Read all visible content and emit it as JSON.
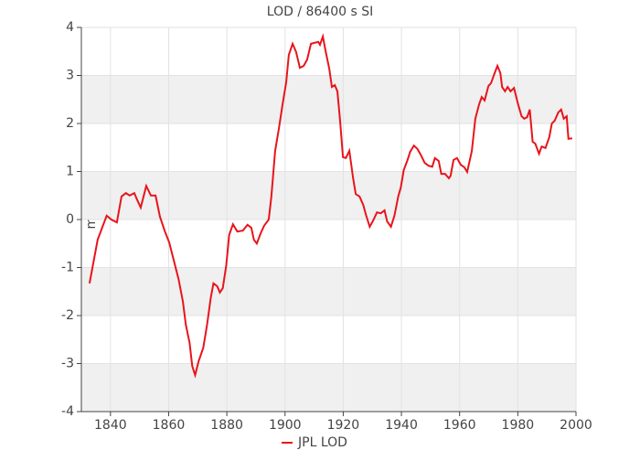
{
  "chart_data": {
    "type": "line",
    "title": "LOD / 86400 s SI",
    "y_label": "ms",
    "x": [
      1832.8,
      1835.6,
      1838.7,
      1840.3,
      1842.2,
      1843.8,
      1845.3,
      1846.6,
      1848.2,
      1849.1,
      1850.4,
      1852.3,
      1853.9,
      1855.5,
      1857.0,
      1858.6,
      1860.2,
      1861.8,
      1863.4,
      1864.9,
      1865.9,
      1867.2,
      1868.1,
      1869.1,
      1870.3,
      1871.9,
      1873.2,
      1874.5,
      1875.4,
      1876.7,
      1877.6,
      1878.6,
      1879.8,
      1880.8,
      1882.1,
      1883.6,
      1885.5,
      1887.1,
      1888.4,
      1889.3,
      1890.3,
      1891.6,
      1892.8,
      1894.4,
      1895.3,
      1896.6,
      1897.9,
      1899.1,
      1900.4,
      1901.3,
      1902.6,
      1903.8,
      1905.1,
      1906.4,
      1907.6,
      1908.9,
      1910.2,
      1911.4,
      1912.0,
      1913.0,
      1913.9,
      1915.2,
      1916.1,
      1917.1,
      1918.0,
      1919.0,
      1919.9,
      1920.9,
      1922.1,
      1923.4,
      1924.3,
      1925.6,
      1926.9,
      1927.8,
      1929.1,
      1930.3,
      1931.6,
      1932.9,
      1934.2,
      1935.1,
      1936.4,
      1937.6,
      1938.9,
      1939.8,
      1940.8,
      1942.1,
      1943.0,
      1944.3,
      1945.5,
      1946.8,
      1948.0,
      1949.3,
      1950.6,
      1951.5,
      1952.8,
      1953.7,
      1955.0,
      1956.3,
      1956.9,
      1957.9,
      1959.1,
      1960.4,
      1961.6,
      1962.6,
      1964.2,
      1965.4,
      1966.7,
      1967.6,
      1968.6,
      1969.9,
      1970.8,
      1971.8,
      1973.0,
      1974.0,
      1974.6,
      1975.6,
      1976.5,
      1977.5,
      1978.7,
      1980.0,
      1981.3,
      1982.2,
      1983.2,
      1984.1,
      1985.1,
      1986.0,
      1987.3,
      1988.2,
      1989.5,
      1990.8,
      1991.7,
      1992.7,
      1993.9,
      1994.9,
      1995.8,
      1996.8,
      1997.4,
      1998.7
    ],
    "series": [
      {
        "name": "JPL LOD",
        "color": "#e8141b",
        "values": [
          -1.33,
          -0.42,
          0.08,
          0,
          -0.06,
          0.48,
          0.55,
          0.5,
          0.55,
          0.42,
          0.25,
          0.7,
          0.5,
          0.5,
          0.06,
          -0.23,
          -0.48,
          -0.86,
          -1.24,
          -1.71,
          -2.19,
          -2.57,
          -3.05,
          -3.24,
          -2.95,
          -2.67,
          -2.19,
          -1.62,
          -1.33,
          -1.39,
          -1.52,
          -1.43,
          -0.95,
          -0.32,
          -0.1,
          -0.25,
          -0.23,
          -0.11,
          -0.17,
          -0.42,
          -0.5,
          -0.29,
          -0.13,
          0,
          0.48,
          1.43,
          1.9,
          2.38,
          2.86,
          3.43,
          3.66,
          3.49,
          3.16,
          3.2,
          3.33,
          3.66,
          3.68,
          3.7,
          3.64,
          3.81,
          3.52,
          3.14,
          2.76,
          2.8,
          2.67,
          2.0,
          1.3,
          1.28,
          1.43,
          0.86,
          0.53,
          0.48,
          0.3,
          0.1,
          -0.15,
          -0.02,
          0.15,
          0.13,
          0.19,
          -0.04,
          -0.15,
          0.08,
          0.48,
          0.67,
          1.03,
          1.24,
          1.41,
          1.54,
          1.47,
          1.33,
          1.18,
          1.12,
          1.1,
          1.28,
          1.22,
          0.95,
          0.95,
          0.86,
          0.91,
          1.24,
          1.28,
          1.14,
          1.09,
          0.99,
          1.43,
          2.1,
          2.4,
          2.55,
          2.48,
          2.78,
          2.84,
          3.01,
          3.2,
          3.05,
          2.76,
          2.67,
          2.76,
          2.67,
          2.74,
          2.42,
          2.15,
          2.1,
          2.13,
          2.29,
          1.62,
          1.58,
          1.37,
          1.52,
          1.49,
          1.71,
          2.0,
          2.06,
          2.23,
          2.29,
          2.1,
          2.15,
          1.68,
          1.69
        ]
      }
    ],
    "xlim": [
      1830,
      2000
    ],
    "xticks": [
      1840,
      1860,
      1880,
      1900,
      1920,
      1940,
      1960,
      1980,
      2000
    ],
    "ylim": [
      -4,
      4
    ],
    "yticks": [
      -4,
      -3,
      -2,
      -1,
      0,
      1,
      2,
      3,
      4
    ],
    "grid": true,
    "legend": "bottom"
  }
}
